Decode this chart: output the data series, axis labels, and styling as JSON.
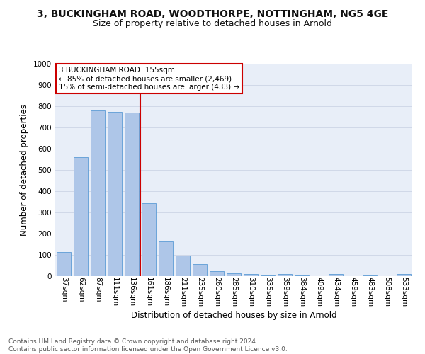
{
  "title1": "3, BUCKINGHAM ROAD, WOODTHORPE, NOTTINGHAM, NG5 4GE",
  "title2": "Size of property relative to detached houses in Arnold",
  "xlabel": "Distribution of detached houses by size in Arnold",
  "ylabel": "Number of detached properties",
  "categories": [
    "37sqm",
    "62sqm",
    "87sqm",
    "111sqm",
    "136sqm",
    "161sqm",
    "186sqm",
    "211sqm",
    "235sqm",
    "260sqm",
    "285sqm",
    "310sqm",
    "335sqm",
    "359sqm",
    "384sqm",
    "409sqm",
    "434sqm",
    "459sqm",
    "483sqm",
    "508sqm",
    "533sqm"
  ],
  "values": [
    115,
    560,
    780,
    775,
    770,
    345,
    163,
    96,
    57,
    22,
    13,
    10,
    2,
    9,
    2,
    0,
    9,
    0,
    2,
    0,
    10
  ],
  "bar_color": "#aec6e8",
  "bar_edge_color": "#5b9bd5",
  "vline_index": 4.5,
  "property_line_label": "3 BUCKINGHAM ROAD: 155sqm",
  "annotation_line1": "← 85% of detached houses are smaller (2,469)",
  "annotation_line2": "15% of semi-detached houses are larger (433) →",
  "annotation_box_color": "#ffffff",
  "annotation_box_edge": "#cc0000",
  "vline_color": "#cc0000",
  "grid_color": "#d0d8e8",
  "background_color": "#e8eef8",
  "ylim": [
    0,
    1000
  ],
  "yticks": [
    0,
    100,
    200,
    300,
    400,
    500,
    600,
    700,
    800,
    900,
    1000
  ],
  "footer_text": "Contains HM Land Registry data © Crown copyright and database right 2024.\nContains public sector information licensed under the Open Government Licence v3.0.",
  "title1_fontsize": 10,
  "title2_fontsize": 9,
  "xlabel_fontsize": 8.5,
  "ylabel_fontsize": 8.5,
  "tick_fontsize": 7.5,
  "annotation_fontsize": 7.5,
  "footer_fontsize": 6.5
}
